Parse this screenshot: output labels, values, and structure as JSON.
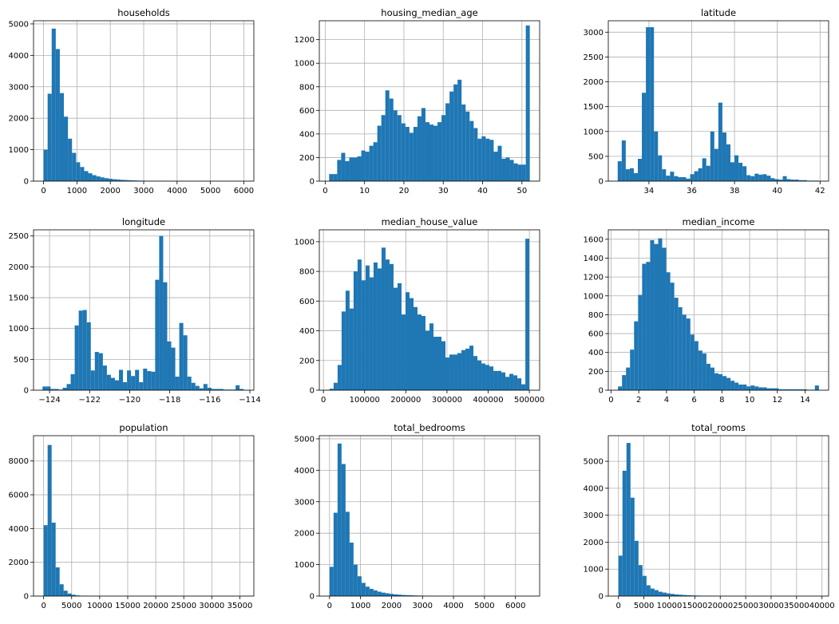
{
  "figure": {
    "bar_color": "#1f77b4",
    "grid_color": "#b0b0b0",
    "frame_color": "#000000"
  },
  "chart_data": [
    {
      "type": "bar",
      "title": "households",
      "bins": 50,
      "xlim": [
        -300,
        6300
      ],
      "xticks": [
        0,
        1000,
        2000,
        3000,
        4000,
        5000,
        6000
      ],
      "xticklabels": [
        "0",
        "1000",
        "2000",
        "3000",
        "4000",
        "5000",
        "6000"
      ],
      "ylim": [
        0,
        5100
      ],
      "yticks": [
        0,
        1000,
        2000,
        3000,
        4000,
        5000
      ],
      "yticklabels": [
        "0",
        "1000",
        "2000",
        "3000",
        "4000",
        "5000"
      ],
      "bin_range": [
        1,
        6082
      ],
      "grid": true,
      "xlabel": "",
      "ylabel": "",
      "values": [
        1000,
        2780,
        4850,
        4200,
        2800,
        2050,
        1350,
        900,
        600,
        450,
        320,
        250,
        190,
        150,
        120,
        95,
        75,
        60,
        50,
        40,
        35,
        28,
        22,
        18,
        15,
        12,
        10,
        8,
        7,
        6,
        5,
        4,
        3,
        3,
        2,
        2,
        2,
        1,
        1,
        1,
        1,
        1,
        1,
        1,
        1,
        1,
        1,
        1,
        1,
        1
      ]
    },
    {
      "type": "bar",
      "title": "housing_median_age",
      "bins": 50,
      "xlim": [
        -1.5,
        54.5
      ],
      "xticks": [
        0,
        10,
        20,
        30,
        40,
        50
      ],
      "xticklabels": [
        "0",
        "10",
        "20",
        "30",
        "40",
        "50"
      ],
      "ylim": [
        0,
        1360
      ],
      "yticks": [
        0,
        200,
        400,
        600,
        800,
        1000,
        1200
      ],
      "yticklabels": [
        "0",
        "200",
        "400",
        "600",
        "800",
        "1000",
        "1200"
      ],
      "bin_range": [
        1,
        52
      ],
      "grid": true,
      "xlabel": "",
      "ylabel": "",
      "values": [
        60,
        60,
        180,
        240,
        170,
        200,
        200,
        210,
        260,
        250,
        300,
        330,
        470,
        560,
        770,
        700,
        600,
        560,
        490,
        460,
        410,
        460,
        550,
        620,
        500,
        480,
        470,
        500,
        560,
        660,
        760,
        820,
        860,
        650,
        590,
        510,
        450,
        360,
        380,
        360,
        350,
        250,
        300,
        190,
        200,
        180,
        150,
        140,
        140,
        1320
      ]
    },
    {
      "type": "bar",
      "title": "latitude",
      "bins": 50,
      "xlim": [
        32.1,
        42.4
      ],
      "xticks": [
        34,
        36,
        38,
        40,
        42
      ],
      "xticklabels": [
        "34",
        "36",
        "38",
        "40",
        "42"
      ],
      "ylim": [
        0,
        3230
      ],
      "yticks": [
        0,
        500,
        1000,
        1500,
        2000,
        2500,
        3000
      ],
      "yticklabels": [
        "0",
        "500",
        "1000",
        "1500",
        "2000",
        "2500",
        "3000"
      ],
      "bin_range": [
        32.54,
        41.95
      ],
      "grid": true,
      "xlabel": "",
      "ylabel": "",
      "values": [
        400,
        820,
        240,
        260,
        160,
        450,
        1780,
        3100,
        3100,
        1000,
        520,
        240,
        110,
        190,
        100,
        80,
        80,
        50,
        140,
        200,
        260,
        460,
        310,
        1000,
        650,
        1580,
        980,
        740,
        380,
        520,
        370,
        300,
        120,
        100,
        150,
        130,
        140,
        110,
        60,
        40,
        30,
        100,
        40,
        30,
        30,
        20,
        20,
        10,
        10,
        10
      ]
    },
    {
      "type": "bar",
      "title": "longitude",
      "bins": 50,
      "xlim": [
        -124.8,
        -113.8
      ],
      "xticks": [
        -124,
        -122,
        -120,
        -118,
        -116,
        -114
      ],
      "xticklabels": [
        "−124",
        "−122",
        "−120",
        "−118",
        "−116",
        "−114"
      ],
      "ylim": [
        0,
        2600
      ],
      "yticks": [
        0,
        500,
        1000,
        1500,
        2000,
        2500
      ],
      "yticklabels": [
        "0",
        "500",
        "1000",
        "1500",
        "2000",
        "2500"
      ],
      "bin_range": [
        -124.35,
        -114.31
      ],
      "grid": true,
      "xlabel": "",
      "ylabel": "",
      "values": [
        60,
        60,
        20,
        20,
        10,
        40,
        100,
        260,
        1050,
        1290,
        1300,
        1100,
        320,
        620,
        600,
        400,
        250,
        200,
        160,
        330,
        130,
        320,
        230,
        330,
        130,
        350,
        310,
        300,
        1790,
        2500,
        1750,
        790,
        690,
        220,
        1090,
        890,
        220,
        120,
        70,
        30,
        100,
        40,
        20,
        20,
        20,
        10,
        10,
        10,
        80,
        20
      ]
    },
    {
      "type": "bar",
      "title": "median_house_value",
      "bins": 50,
      "xlim": [
        -10000,
        525000
      ],
      "xticks": [
        0,
        100000,
        200000,
        300000,
        400000,
        500000
      ],
      "xticklabels": [
        "0",
        "100000",
        "200000",
        "300000",
        "400000",
        "500000"
      ],
      "ylim": [
        0,
        1080
      ],
      "yticks": [
        0,
        200,
        400,
        600,
        800,
        1000
      ],
      "yticklabels": [
        "0",
        "200",
        "400",
        "600",
        "800",
        "1000"
      ],
      "bin_range": [
        14999,
        500001
      ],
      "grid": true,
      "xlabel": "",
      "ylabel": "",
      "values": [
        10,
        50,
        170,
        530,
        670,
        550,
        800,
        880,
        740,
        840,
        760,
        860,
        820,
        960,
        880,
        850,
        690,
        720,
        510,
        660,
        620,
        560,
        510,
        500,
        400,
        450,
        360,
        360,
        330,
        220,
        240,
        240,
        250,
        270,
        280,
        300,
        230,
        200,
        180,
        170,
        160,
        130,
        130,
        120,
        90,
        110,
        100,
        80,
        40,
        1020
      ]
    },
    {
      "type": "bar",
      "title": "median_income",
      "bins": 50,
      "xlim": [
        -0.2,
        15.7
      ],
      "xticks": [
        0,
        2,
        4,
        6,
        8,
        10,
        12,
        14
      ],
      "xticklabels": [
        "0",
        "2",
        "4",
        "6",
        "8",
        "10",
        "12",
        "14"
      ],
      "ylim": [
        0,
        1700
      ],
      "yticks": [
        0,
        200,
        400,
        600,
        800,
        1000,
        1200,
        1400,
        1600
      ],
      "yticklabels": [
        "0",
        "200",
        "400",
        "600",
        "800",
        "1000",
        "1200",
        "1400",
        "1600"
      ],
      "bin_range": [
        0.5,
        15.0001
      ],
      "grid": true,
      "xlabel": "",
      "ylabel": "",
      "values": [
        40,
        160,
        240,
        430,
        730,
        1010,
        1340,
        1360,
        1590,
        1550,
        1610,
        1510,
        1250,
        1140,
        980,
        880,
        800,
        760,
        590,
        520,
        420,
        390,
        280,
        240,
        180,
        170,
        150,
        130,
        100,
        80,
        60,
        60,
        40,
        50,
        40,
        30,
        30,
        20,
        20,
        20,
        10,
        10,
        10,
        10,
        10,
        10,
        10,
        5,
        5,
        50
      ]
    },
    {
      "type": "bar",
      "title": "population",
      "bins": 50,
      "xlim": [
        -1800,
        37500
      ],
      "xticks": [
        0,
        5000,
        10000,
        15000,
        20000,
        25000,
        30000,
        35000
      ],
      "xticklabels": [
        "0",
        "5000",
        "10000",
        "15000",
        "20000",
        "25000",
        "30000",
        "35000"
      ],
      "ylim": [
        0,
        9500
      ],
      "yticks": [
        0,
        2000,
        4000,
        6000,
        8000
      ],
      "yticklabels": [
        "0",
        "2000",
        "4000",
        "6000",
        "8000"
      ],
      "bin_range": [
        3,
        35682
      ],
      "grid": true,
      "xlabel": "",
      "ylabel": "",
      "values": [
        4200,
        8950,
        4350,
        1700,
        700,
        320,
        150,
        80,
        40,
        25,
        15,
        10,
        8,
        6,
        5,
        4,
        3,
        3,
        2,
        2,
        2,
        1,
        1,
        1,
        1,
        1,
        1,
        1,
        1,
        1,
        1,
        1,
        1,
        1,
        1,
        1,
        1,
        1,
        1,
        1,
        1,
        1,
        1,
        1,
        1,
        1,
        1,
        1,
        1,
        1
      ]
    },
    {
      "type": "bar",
      "title": "total_bedrooms",
      "bins": 50,
      "xlim": [
        -330,
        6780
      ],
      "xticks": [
        0,
        1000,
        2000,
        3000,
        4000,
        5000,
        6000
      ],
      "xticklabels": [
        "0",
        "1000",
        "2000",
        "3000",
        "4000",
        "5000",
        "6000"
      ],
      "ylim": [
        0,
        5100
      ],
      "yticks": [
        0,
        1000,
        2000,
        3000,
        4000,
        5000
      ],
      "yticklabels": [
        "0",
        "1000",
        "2000",
        "3000",
        "4000",
        "5000"
      ],
      "bin_range": [
        1,
        6445
      ],
      "grid": true,
      "xlabel": "",
      "ylabel": "",
      "values": [
        930,
        2650,
        4850,
        4200,
        2680,
        1700,
        1000,
        630,
        420,
        300,
        230,
        180,
        140,
        110,
        90,
        70,
        55,
        45,
        35,
        30,
        25,
        20,
        16,
        13,
        10,
        8,
        7,
        6,
        5,
        4,
        3,
        3,
        2,
        2,
        2,
        1,
        1,
        1,
        1,
        1,
        1,
        1,
        1,
        1,
        1,
        1,
        1,
        1,
        1,
        1
      ]
    },
    {
      "type": "bar",
      "title": "total_rooms",
      "bins": 50,
      "xlim": [
        -2000,
        41300
      ],
      "xticks": [
        0,
        5000,
        10000,
        15000,
        20000,
        25000,
        30000,
        35000,
        40000
      ],
      "xticklabels": [
        "0",
        "5000",
        "10000",
        "15000",
        "20000",
        "25000",
        "30000",
        "35000",
        "40000"
      ],
      "ylim": [
        0,
        5950
      ],
      "yticks": [
        0,
        1000,
        2000,
        3000,
        4000,
        5000
      ],
      "yticklabels": [
        "0",
        "1000",
        "2000",
        "3000",
        "4000",
        "5000"
      ],
      "bin_range": [
        2,
        39320
      ],
      "grid": true,
      "xlabel": "",
      "ylabel": "",
      "values": [
        1500,
        4650,
        5680,
        3650,
        2050,
        1150,
        750,
        400,
        280,
        220,
        160,
        130,
        100,
        80,
        60,
        50,
        40,
        30,
        25,
        20,
        15,
        12,
        10,
        8,
        6,
        5,
        4,
        3,
        3,
        2,
        2,
        2,
        1,
        1,
        1,
        1,
        1,
        1,
        1,
        1,
        1,
        1,
        1,
        1,
        1,
        1,
        1,
        1,
        1,
        1
      ]
    }
  ]
}
